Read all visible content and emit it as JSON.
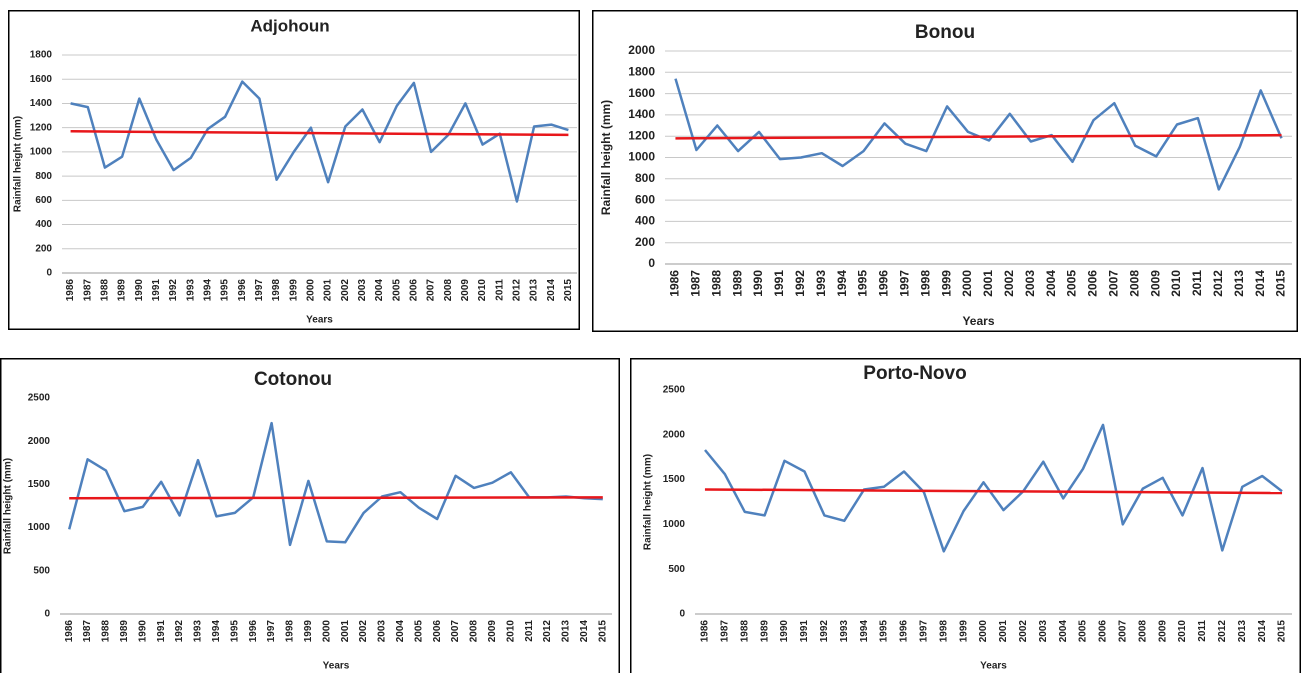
{
  "chart_data": [
    {
      "type": "line",
      "title": "Adjohoun",
      "x_label": "Years",
      "y_label": "Rainfall height (mm)",
      "categories": [
        "1986",
        "1987",
        "1988",
        "1989",
        "1990",
        "1991",
        "1992",
        "1993",
        "1994",
        "1995",
        "1996",
        "1997",
        "1998",
        "1999",
        "2000",
        "2001",
        "2002",
        "2003",
        "2004",
        "2005",
        "2006",
        "2007",
        "2008",
        "2009",
        "2010",
        "2011",
        "2012",
        "2013",
        "2014",
        "2015"
      ],
      "series": [
        {
          "color": "#4f81bd",
          "values": [
            1400,
            1370,
            870,
            960,
            1440,
            1100,
            850,
            950,
            1190,
            1290,
            1580,
            1440,
            770,
            1000,
            1200,
            750,
            1210,
            1350,
            1080,
            1380,
            1570,
            1000,
            1140,
            1400,
            1060,
            1150,
            590,
            1210,
            1225,
            1180
          ]
        }
      ],
      "trend": {
        "color": "#e8171b",
        "values": [
          1170,
          1140
        ]
      },
      "ylim": [
        0,
        1800
      ],
      "yticks": [
        0,
        200,
        400,
        600,
        800,
        1000,
        1200,
        1400,
        1600,
        1800
      ],
      "grid": true
    },
    {
      "type": "line",
      "title": "Bonou",
      "x_label": "Years",
      "y_label": "Rainfall height (mm)",
      "categories": [
        "1986",
        "1987",
        "1988",
        "1989",
        "1990",
        "1991",
        "1992",
        "1993",
        "1994",
        "1995",
        "1996",
        "1997",
        "1998",
        "1999",
        "2000",
        "2001",
        "2002",
        "2003",
        "2004",
        "2005",
        "2006",
        "2007",
        "2008",
        "2009",
        "2010",
        "2011",
        "2012",
        "2013",
        "2014",
        "2015"
      ],
      "series": [
        {
          "color": "#4f81bd",
          "values": [
            1740,
            1070,
            1300,
            1060,
            1240,
            985,
            1000,
            1040,
            920,
            1060,
            1320,
            1130,
            1060,
            1480,
            1240,
            1160,
            1410,
            1150,
            1210,
            960,
            1350,
            1510,
            1110,
            1010,
            1310,
            1370,
            700,
            1100,
            1630,
            1180
          ]
        }
      ],
      "trend": {
        "color": "#e8171b",
        "values": [
          1180,
          1210
        ]
      },
      "ylim": [
        0,
        2000
      ],
      "yticks": [
        0,
        200,
        400,
        600,
        800,
        1000,
        1200,
        1400,
        1600,
        1800,
        2000
      ],
      "grid": true
    },
    {
      "type": "line",
      "title": "Cotonou",
      "x_label": "Years",
      "y_label": "Rainfall height (mm)",
      "categories": [
        "1986",
        "1987",
        "1988",
        "1989",
        "1990",
        "1991",
        "1992",
        "1993",
        "1994",
        "1995",
        "1996",
        "1997",
        "1998",
        "1999",
        "2000",
        "2001",
        "2002",
        "2003",
        "2004",
        "2005",
        "2006",
        "2007",
        "2008",
        "2009",
        "2010",
        "2011",
        "2012",
        "2013",
        "2014",
        "2015"
      ],
      "series": [
        {
          "color": "#4f81bd",
          "values": [
            980,
            1790,
            1660,
            1190,
            1240,
            1530,
            1140,
            1780,
            1130,
            1170,
            1350,
            2210,
            800,
            1540,
            840,
            830,
            1170,
            1360,
            1410,
            1230,
            1100,
            1600,
            1460,
            1520,
            1640,
            1350,
            1350,
            1360,
            1340,
            1330
          ]
        }
      ],
      "trend": {
        "color": "#e8171b",
        "values": [
          1340,
          1350
        ]
      },
      "ylim": [
        0,
        2500
      ],
      "yticks": [
        0,
        500,
        1000,
        1500,
        2000,
        2500
      ],
      "grid": false
    },
    {
      "type": "line",
      "title": "Porto-Novo",
      "x_label": "Years",
      "y_label": "Rainfall height (mm)",
      "categories": [
        "1986",
        "1987",
        "1988",
        "1989",
        "1990",
        "1991",
        "1992",
        "1993",
        "1994",
        "1995",
        "1996",
        "1997",
        "1998",
        "1999",
        "2000",
        "2001",
        "2002",
        "2003",
        "2004",
        "2005",
        "2006",
        "2007",
        "2008",
        "2009",
        "2010",
        "2011",
        "2012",
        "2013",
        "2014",
        "2015"
      ],
      "series": [
        {
          "color": "#4f81bd",
          "values": [
            1830,
            1560,
            1140,
            1100,
            1710,
            1590,
            1100,
            1040,
            1390,
            1420,
            1590,
            1360,
            700,
            1150,
            1470,
            1160,
            1370,
            1700,
            1290,
            1620,
            2110,
            1000,
            1400,
            1520,
            1100,
            1630,
            710,
            1420,
            1540,
            1370
          ]
        }
      ],
      "trend": {
        "color": "#e8171b",
        "values": [
          1390,
          1350
        ]
      },
      "ylim": [
        0,
        2500
      ],
      "yticks": [
        0,
        500,
        1000,
        1500,
        2000,
        2500
      ],
      "grid": false
    }
  ]
}
